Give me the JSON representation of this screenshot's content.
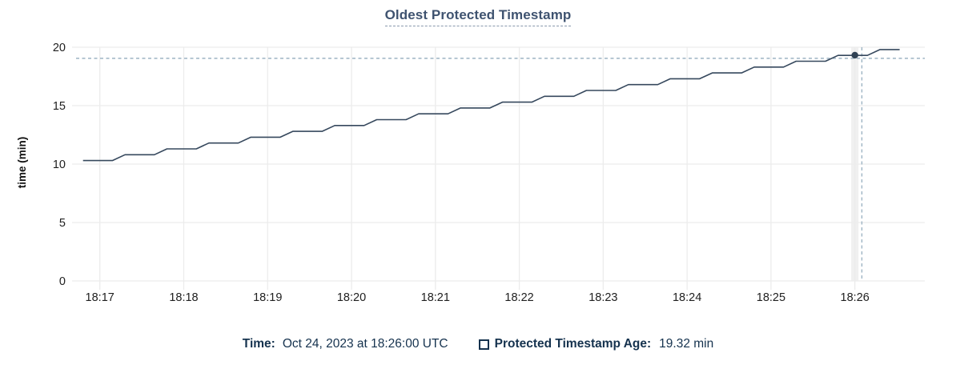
{
  "title": {
    "text": "Oldest Protected Timestamp"
  },
  "y_axis_title": "time (min)",
  "footer": {
    "time_label": "Time:",
    "time_value": "Oct 24, 2023 at 18:26:00 UTC",
    "series_label": "Protected Timestamp Age:",
    "series_value": "19.32 min"
  },
  "colors": {
    "line": "#36485d",
    "dot": "#2f4154",
    "grid": "#ececec",
    "hover_band": "#f0f0f0",
    "crosshair": "#9db3c3",
    "tick_text": "#202020",
    "title_text": "#3f5370",
    "footer_text": "#15324e"
  },
  "chart_data": {
    "type": "line",
    "title": "Oldest Protected Timestamp",
    "xlabel": "",
    "ylabel": "time (min)",
    "x_domain": [
      "18:16:43",
      "18:26:50"
    ],
    "ylim": [
      0,
      20
    ],
    "x_ticks": [
      "18:17",
      "18:18",
      "18:19",
      "18:20",
      "18:21",
      "18:22",
      "18:23",
      "18:24",
      "18:25",
      "18:26"
    ],
    "y_ticks": [
      0,
      5,
      10,
      15,
      20
    ],
    "grid": true,
    "legend_position": "bottom",
    "series": [
      {
        "name": "Protected Timestamp Age",
        "unit": "min",
        "points": [
          [
            "18:16:48",
            10.3
          ],
          [
            "18:17:09",
            10.3
          ],
          [
            "18:17:18",
            10.8
          ],
          [
            "18:17:39",
            10.8
          ],
          [
            "18:17:48",
            11.3
          ],
          [
            "18:18:09",
            11.3
          ],
          [
            "18:18:18",
            11.8
          ],
          [
            "18:18:39",
            11.8
          ],
          [
            "18:18:48",
            12.3
          ],
          [
            "18:19:09",
            12.3
          ],
          [
            "18:19:18",
            12.8
          ],
          [
            "18:19:39",
            12.8
          ],
          [
            "18:19:48",
            13.3
          ],
          [
            "18:20:09",
            13.3
          ],
          [
            "18:20:18",
            13.8
          ],
          [
            "18:20:39",
            13.8
          ],
          [
            "18:20:48",
            14.3
          ],
          [
            "18:21:09",
            14.3
          ],
          [
            "18:21:18",
            14.8
          ],
          [
            "18:21:39",
            14.8
          ],
          [
            "18:21:48",
            15.3
          ],
          [
            "18:22:09",
            15.3
          ],
          [
            "18:22:18",
            15.8
          ],
          [
            "18:22:39",
            15.8
          ],
          [
            "18:22:48",
            16.3
          ],
          [
            "18:23:09",
            16.3
          ],
          [
            "18:23:18",
            16.8
          ],
          [
            "18:23:39",
            16.8
          ],
          [
            "18:23:48",
            17.3
          ],
          [
            "18:24:09",
            17.3
          ],
          [
            "18:24:18",
            17.8
          ],
          [
            "18:24:39",
            17.8
          ],
          [
            "18:24:48",
            18.3
          ],
          [
            "18:25:09",
            18.3
          ],
          [
            "18:25:18",
            18.8
          ],
          [
            "18:25:39",
            18.8
          ],
          [
            "18:25:48",
            19.3
          ],
          [
            "18:26:09",
            19.3
          ],
          [
            "18:26:18",
            19.8
          ],
          [
            "18:26:32",
            19.8
          ]
        ]
      }
    ],
    "highlight_point": {
      "time": "18:26:00",
      "value": 19.32
    },
    "crosshair": {
      "time": "18:26:05",
      "value": 19.05
    },
    "hover_band_time": "18:26:00"
  }
}
